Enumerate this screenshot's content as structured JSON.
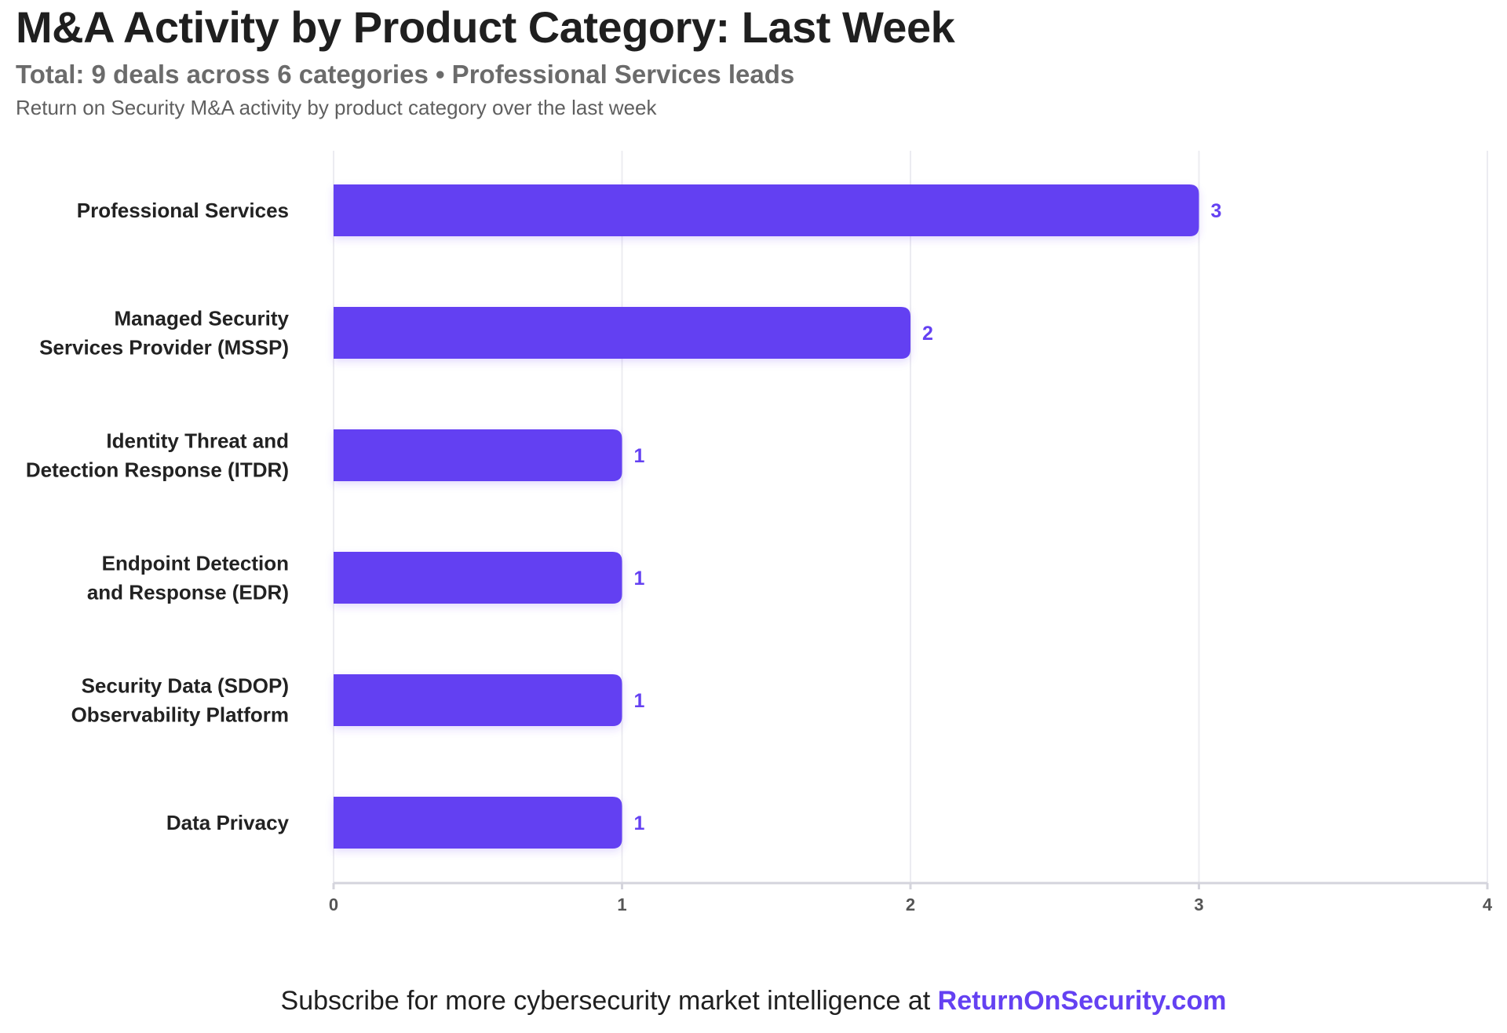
{
  "title": "M&A Activity by Product Category: Last Week",
  "subtitle": "Total: 9 deals across 6 categories • Professional Services leads",
  "description": "Return on Security M&A activity by product category over the last week",
  "footer": {
    "text": "Subscribe for more cybersecurity market intelligence at ",
    "link": "ReturnOnSecurity.com"
  },
  "colors": {
    "bar": "#6441f2",
    "value_label": "#6441f2",
    "grid": "#ececf1",
    "axis": "#d4d4dc"
  },
  "chart_data": {
    "type": "bar",
    "orientation": "horizontal",
    "categories": [
      [
        "Professional Services"
      ],
      [
        "Managed Security",
        "Services Provider (MSSP)"
      ],
      [
        "Identity Threat and",
        "Detection Response (ITDR)"
      ],
      [
        "Endpoint Detection",
        "and Response (EDR)"
      ],
      [
        "Security Data (SDOP)",
        "Observability Platform"
      ],
      [
        "Data Privacy"
      ]
    ],
    "values": [
      3,
      2,
      1,
      1,
      1,
      1
    ],
    "xlim": [
      0,
      4
    ],
    "xticks": [
      "0",
      "1",
      "2",
      "3",
      "4"
    ],
    "grid": true,
    "xlabel": "",
    "ylabel": ""
  }
}
